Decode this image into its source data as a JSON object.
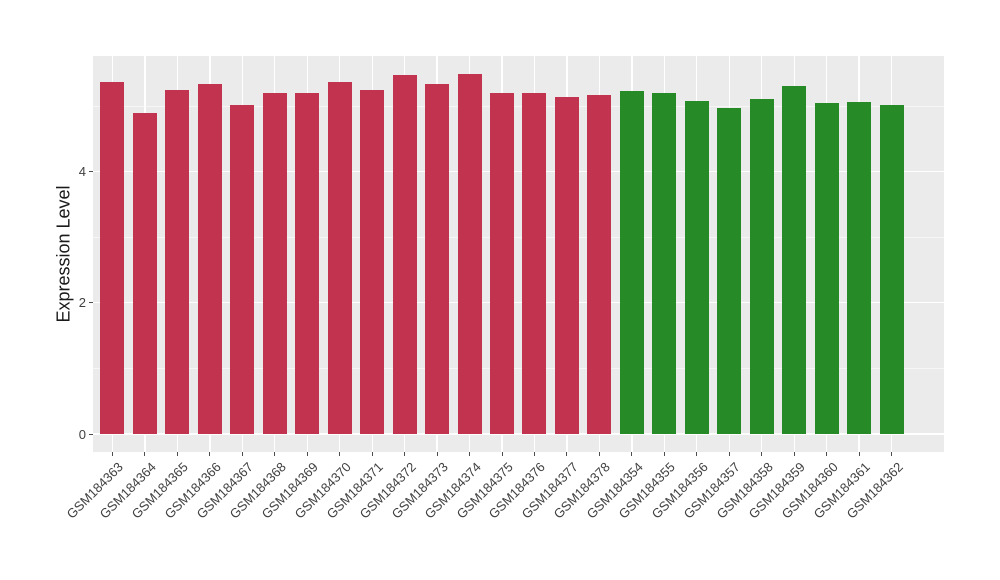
{
  "chart_data": {
    "type": "bar",
    "title": "",
    "xlabel": "",
    "ylabel": "Expression Level",
    "ylim": [
      0,
      5.76
    ],
    "yticks": [
      0,
      2,
      4
    ],
    "yticks_minor": [
      1,
      3,
      5
    ],
    "grid": "on",
    "legend": "none",
    "panel_background": "#EBEBEB",
    "gridline_color": "#FFFFFF",
    "group_colors": {
      "red": "#C23350",
      "green": "#268A26"
    },
    "bars": [
      {
        "label": "GSM184363",
        "value": 5.37,
        "group": "red"
      },
      {
        "label": "GSM184364",
        "value": 4.9,
        "group": "red"
      },
      {
        "label": "GSM184365",
        "value": 5.24,
        "group": "red"
      },
      {
        "label": "GSM184366",
        "value": 5.33,
        "group": "red"
      },
      {
        "label": "GSM184367",
        "value": 5.01,
        "group": "red"
      },
      {
        "label": "GSM184368",
        "value": 5.2,
        "group": "red"
      },
      {
        "label": "GSM184369",
        "value": 5.2,
        "group": "red"
      },
      {
        "label": "GSM184370",
        "value": 5.36,
        "group": "red"
      },
      {
        "label": "GSM184371",
        "value": 5.24,
        "group": "red"
      },
      {
        "label": "GSM184372",
        "value": 5.48,
        "group": "red"
      },
      {
        "label": "GSM184373",
        "value": 5.33,
        "group": "red"
      },
      {
        "label": "GSM184374",
        "value": 5.49,
        "group": "red"
      },
      {
        "label": "GSM184375",
        "value": 5.2,
        "group": "red"
      },
      {
        "label": "GSM184376",
        "value": 5.2,
        "group": "red"
      },
      {
        "label": "GSM184377",
        "value": 5.14,
        "group": "red"
      },
      {
        "label": "GSM184378",
        "value": 5.17,
        "group": "red"
      },
      {
        "label": "GSM184354",
        "value": 5.23,
        "group": "green"
      },
      {
        "label": "GSM184355",
        "value": 5.2,
        "group": "green"
      },
      {
        "label": "GSM184356",
        "value": 5.08,
        "group": "green"
      },
      {
        "label": "GSM184357",
        "value": 4.97,
        "group": "green"
      },
      {
        "label": "GSM184358",
        "value": 5.1,
        "group": "green"
      },
      {
        "label": "GSM184359",
        "value": 5.31,
        "group": "green"
      },
      {
        "label": "GSM184360",
        "value": 5.05,
        "group": "green"
      },
      {
        "label": "GSM184361",
        "value": 5.06,
        "group": "green"
      },
      {
        "label": "GSM184362",
        "value": 5.01,
        "group": "green"
      }
    ]
  }
}
